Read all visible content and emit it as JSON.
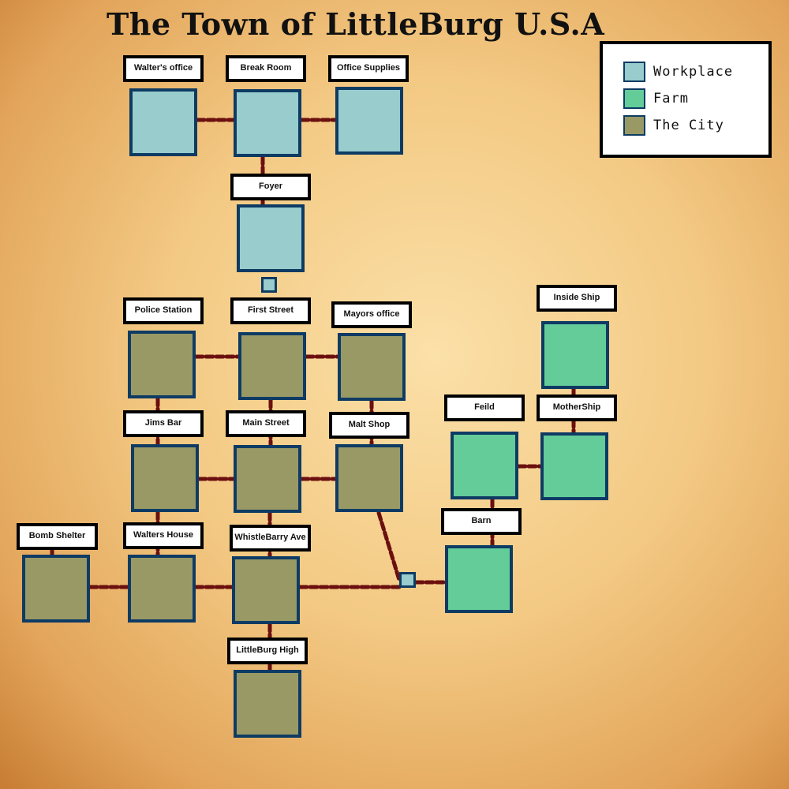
{
  "title": "The Town of LittleBurg U.S.A",
  "colors": {
    "workplace": "#98cccd",
    "farm": "#63cc99",
    "city": "#999966",
    "border": "#0e3b63",
    "path": "#6b0f0f"
  },
  "legend": [
    {
      "label": "Workplace",
      "category": "workplace"
    },
    {
      "label": "Farm",
      "category": "farm"
    },
    {
      "label": "The City",
      "category": "city"
    }
  ],
  "rooms": [
    {
      "id": "walters-office",
      "label": "Walter's office",
      "category": "workplace"
    },
    {
      "id": "break-room",
      "label": "Break Room",
      "category": "workplace"
    },
    {
      "id": "office-supplies",
      "label": "Office Supplies",
      "category": "workplace"
    },
    {
      "id": "foyer",
      "label": "Foyer",
      "category": "workplace"
    },
    {
      "id": "police-station",
      "label": "Police Station",
      "category": "city"
    },
    {
      "id": "first-street",
      "label": "First Street",
      "category": "city"
    },
    {
      "id": "mayors-office",
      "label": "Mayors office",
      "category": "city"
    },
    {
      "id": "jims-bar",
      "label": "Jims Bar",
      "category": "city"
    },
    {
      "id": "main-street",
      "label": "Main Street",
      "category": "city"
    },
    {
      "id": "malt-shop",
      "label": "Malt Shop",
      "category": "city"
    },
    {
      "id": "bomb-shelter",
      "label": "Bomb Shelter",
      "category": "city"
    },
    {
      "id": "walters-house",
      "label": "Walters House",
      "category": "city"
    },
    {
      "id": "whistlebarry-ave",
      "label": "WhistleBarry Ave",
      "category": "city"
    },
    {
      "id": "littleburg-high",
      "label": "LittleBurg High",
      "category": "city"
    },
    {
      "id": "inside-ship",
      "label": "Inside Ship",
      "category": "farm"
    },
    {
      "id": "feild",
      "label": "Feild",
      "category": "farm"
    },
    {
      "id": "mothership",
      "label": "MotherShip",
      "category": "farm"
    },
    {
      "id": "barn",
      "label": "Barn",
      "category": "farm"
    }
  ],
  "connectors": [
    {
      "id": "foyer-connector",
      "category": "workplace"
    },
    {
      "id": "farm-connector",
      "category": "workplace"
    }
  ]
}
